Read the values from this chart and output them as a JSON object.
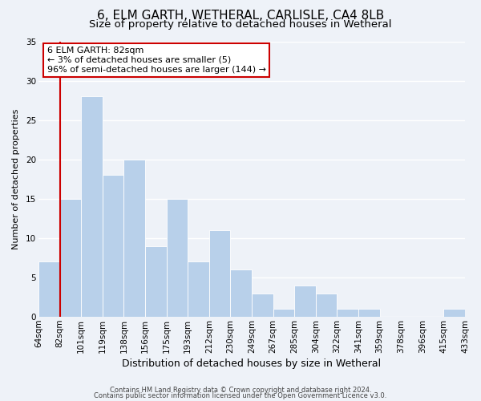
{
  "title": "6, ELM GARTH, WETHERAL, CARLISLE, CA4 8LB",
  "subtitle": "Size of property relative to detached houses in Wetheral",
  "xlabel": "Distribution of detached houses by size in Wetheral",
  "ylabel": "Number of detached properties",
  "bar_color": "#b8d0ea",
  "background_color": "#eef2f8",
  "grid_color": "#ffffff",
  "bins": [
    "64sqm",
    "82sqm",
    "101sqm",
    "119sqm",
    "138sqm",
    "156sqm",
    "175sqm",
    "193sqm",
    "212sqm",
    "230sqm",
    "249sqm",
    "267sqm",
    "285sqm",
    "304sqm",
    "322sqm",
    "341sqm",
    "359sqm",
    "378sqm",
    "396sqm",
    "415sqm",
    "433sqm"
  ],
  "values": [
    7,
    15,
    28,
    18,
    20,
    9,
    15,
    7,
    11,
    6,
    3,
    1,
    4,
    3,
    1,
    1,
    0,
    0,
    0,
    1
  ],
  "ylim": [
    0,
    35
  ],
  "yticks": [
    0,
    5,
    10,
    15,
    20,
    25,
    30,
    35
  ],
  "marker_line_color": "#cc0000",
  "annotation_text": "6 ELM GARTH: 82sqm\n← 3% of detached houses are smaller (5)\n96% of semi-detached houses are larger (144) →",
  "annotation_box_edge": "#cc0000",
  "footer_line1": "Contains HM Land Registry data © Crown copyright and database right 2024.",
  "footer_line2": "Contains public sector information licensed under the Open Government Licence v3.0.",
  "title_fontsize": 11,
  "subtitle_fontsize": 9.5,
  "tick_fontsize": 7.5,
  "xlabel_fontsize": 9,
  "ylabel_fontsize": 8,
  "annotation_fontsize": 8,
  "footer_fontsize": 6
}
